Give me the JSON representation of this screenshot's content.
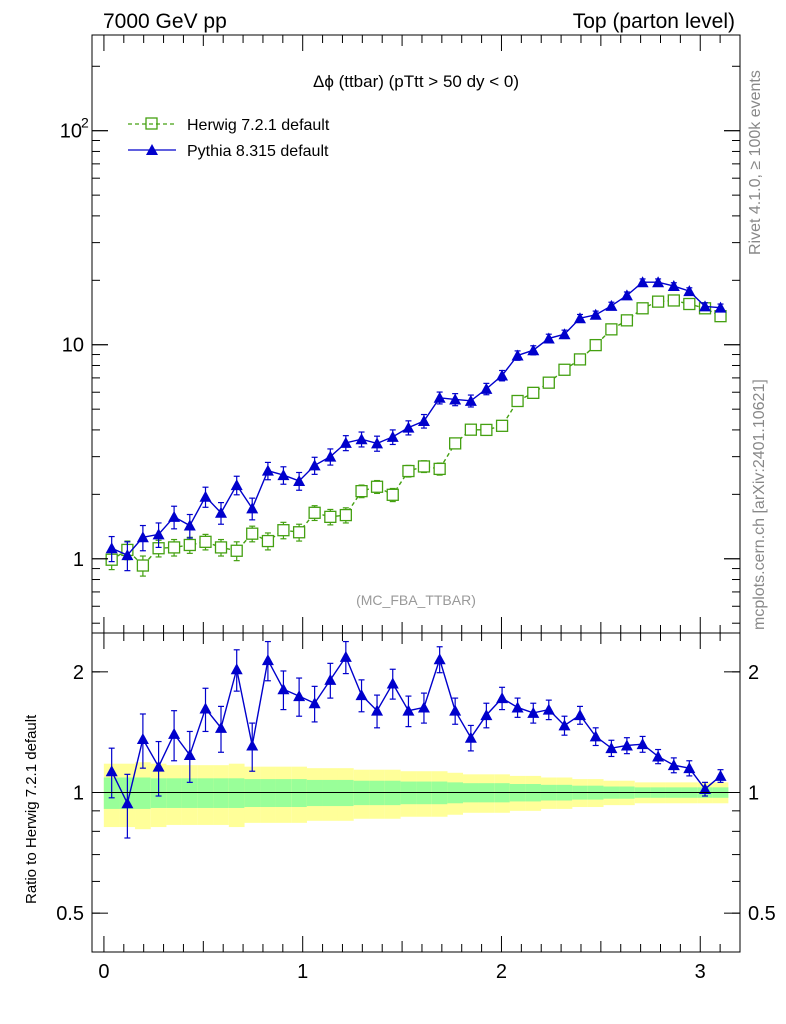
{
  "header": {
    "left": "7000 GeV pp",
    "right": "Top (parton level)"
  },
  "side_labels": {
    "rivet": "Rivet 4.1.0, ≥ 100k events",
    "mcplots": "mcplots.cern.ch [arXiv:2401.10621]"
  },
  "colors": {
    "herwig": "#44a011",
    "pythia": "#0000cc",
    "band_outer": "#ffff99",
    "band_inner": "#99ff99"
  },
  "chart_data": [
    {
      "type": "line",
      "title": "Δϕ (ttbar) (pTtt > 50 dy < 0)",
      "analysis": "(MC_FBA_TTBAR)",
      "xlabel": "",
      "ylabel": "",
      "yscale": "log",
      "xlim": [
        -0.06,
        3.2
      ],
      "ylim": [
        0.45,
        280
      ],
      "xticks": [
        0,
        1,
        2,
        3
      ],
      "xtick_labels": [
        "0",
        "1",
        "2",
        "3"
      ],
      "yticks": [
        1,
        10,
        100
      ],
      "ytick_labels": [
        "1",
        "10",
        "10^2"
      ],
      "legend_position": "top-left",
      "x": [
        0.039,
        0.118,
        0.196,
        0.275,
        0.353,
        0.432,
        0.511,
        0.589,
        0.668,
        0.746,
        0.825,
        0.903,
        0.982,
        1.06,
        1.139,
        1.217,
        1.296,
        1.374,
        1.453,
        1.532,
        1.61,
        1.689,
        1.767,
        1.846,
        1.924,
        2.003,
        2.081,
        2.16,
        2.238,
        2.317,
        2.395,
        2.474,
        2.553,
        2.631,
        2.71,
        2.788,
        2.867,
        2.945,
        3.024,
        3.102
      ],
      "series": [
        {
          "name": "Herwig 7.2.1 default",
          "color_key": "herwig",
          "marker": "open-square",
          "line": "dashed",
          "values": [
            0.99,
            1.1,
            0.93,
            1.12,
            1.13,
            1.16,
            1.2,
            1.13,
            1.09,
            1.31,
            1.21,
            1.36,
            1.33,
            1.64,
            1.57,
            1.6,
            2.07,
            2.17,
            1.99,
            2.57,
            2.7,
            2.63,
            3.46,
            4.01,
            4.0,
            4.18,
            5.46,
            5.96,
            6.65,
            7.64,
            8.54,
            9.96,
            11.8,
            13.0,
            14.8,
            15.9,
            16.1,
            15.5,
            14.8,
            13.6
          ],
          "errors": [
            0.1,
            0.11,
            0.1,
            0.1,
            0.1,
            0.1,
            0.1,
            0.1,
            0.11,
            0.11,
            0.11,
            0.12,
            0.12,
            0.13,
            0.13,
            0.13,
            0.14,
            0.15,
            0.14,
            0.16,
            0.17,
            0.17,
            0.19,
            0.2,
            0.2,
            0.21,
            0.24,
            0.25,
            0.27,
            0.29,
            0.31,
            0.35,
            0.38,
            0.4,
            0.43,
            0.45,
            0.45,
            0.44,
            0.43,
            0.41
          ]
        },
        {
          "name": "Pythia 8.315 default",
          "color_key": "pythia",
          "marker": "filled-triangle",
          "line": "solid",
          "values": [
            1.12,
            1.04,
            1.26,
            1.3,
            1.57,
            1.43,
            1.95,
            1.64,
            2.21,
            1.72,
            2.58,
            2.46,
            2.31,
            2.73,
            3.0,
            3.48,
            3.62,
            3.46,
            3.71,
            4.1,
            4.4,
            5.65,
            5.55,
            5.47,
            6.22,
            7.18,
            8.91,
            9.43,
            10.7,
            11.2,
            13.3,
            13.8,
            15.2,
            17.0,
            19.6,
            19.6,
            18.8,
            17.8,
            15.1,
            14.9
          ],
          "errors": [
            0.15,
            0.16,
            0.17,
            0.17,
            0.19,
            0.18,
            0.21,
            0.19,
            0.22,
            0.2,
            0.24,
            0.23,
            0.22,
            0.25,
            0.26,
            0.28,
            0.29,
            0.28,
            0.29,
            0.31,
            0.32,
            0.36,
            0.36,
            0.35,
            0.38,
            0.4,
            0.45,
            0.46,
            0.5,
            0.5,
            0.55,
            0.56,
            0.6,
            0.64,
            0.7,
            0.7,
            0.68,
            0.65,
            0.6,
            0.59
          ]
        }
      ]
    },
    {
      "type": "line",
      "ylabel": "Ratio to Herwig 7.2.1 default",
      "xlabel": "",
      "yscale": "log",
      "xlim": [
        -0.06,
        3.2
      ],
      "ylim": [
        0.4,
        2.5
      ],
      "yticks": [
        0.5,
        1,
        2
      ],
      "ytick_labels": [
        "0.5",
        "1",
        "2"
      ],
      "xticks": [
        0,
        1,
        2,
        3
      ],
      "xtick_labels": [
        "0",
        "1",
        "2",
        "3"
      ],
      "reference_line": 1,
      "x": [
        0.039,
        0.118,
        0.196,
        0.275,
        0.353,
        0.432,
        0.511,
        0.589,
        0.668,
        0.746,
        0.825,
        0.903,
        0.982,
        1.06,
        1.139,
        1.217,
        1.296,
        1.374,
        1.453,
        1.532,
        1.61,
        1.689,
        1.767,
        1.846,
        1.924,
        2.003,
        2.081,
        2.16,
        2.238,
        2.317,
        2.395,
        2.474,
        2.553,
        2.631,
        2.71,
        2.788,
        2.867,
        2.945,
        3.024,
        3.102
      ],
      "band_inner_halfwidth": [
        0.09,
        0.09,
        0.09,
        0.085,
        0.085,
        0.085,
        0.085,
        0.085,
        0.085,
        0.08,
        0.08,
        0.08,
        0.08,
        0.075,
        0.075,
        0.075,
        0.07,
        0.07,
        0.07,
        0.065,
        0.065,
        0.065,
        0.06,
        0.055,
        0.055,
        0.055,
        0.05,
        0.05,
        0.045,
        0.045,
        0.04,
        0.04,
        0.035,
        0.035,
        0.03,
        0.03,
        0.03,
        0.03,
        0.03,
        0.03
      ],
      "band_outer_halfwidth": [
        0.18,
        0.18,
        0.19,
        0.18,
        0.17,
        0.17,
        0.17,
        0.17,
        0.18,
        0.16,
        0.16,
        0.16,
        0.16,
        0.15,
        0.15,
        0.15,
        0.14,
        0.14,
        0.14,
        0.13,
        0.13,
        0.13,
        0.12,
        0.11,
        0.11,
        0.11,
        0.1,
        0.1,
        0.09,
        0.09,
        0.08,
        0.08,
        0.07,
        0.07,
        0.06,
        0.06,
        0.06,
        0.06,
        0.06,
        0.06
      ],
      "series": [
        {
          "name": "Pythia 8.315 default / Herwig 7.2.1 default",
          "color_key": "pythia",
          "marker": "filled-triangle",
          "line": "solid",
          "values": [
            1.13,
            0.94,
            1.36,
            1.16,
            1.4,
            1.24,
            1.62,
            1.45,
            2.03,
            1.31,
            2.14,
            1.81,
            1.74,
            1.67,
            1.91,
            2.18,
            1.75,
            1.6,
            1.87,
            1.6,
            1.63,
            2.15,
            1.6,
            1.37,
            1.56,
            1.72,
            1.63,
            1.58,
            1.61,
            1.47,
            1.56,
            1.38,
            1.29,
            1.31,
            1.32,
            1.23,
            1.17,
            1.15,
            1.02,
            1.1
          ],
          "errors": [
            0.16,
            0.17,
            0.21,
            0.18,
            0.2,
            0.18,
            0.2,
            0.19,
            0.24,
            0.18,
            0.24,
            0.2,
            0.19,
            0.17,
            0.19,
            0.2,
            0.16,
            0.15,
            0.16,
            0.14,
            0.14,
            0.16,
            0.12,
            0.1,
            0.11,
            0.11,
            0.09,
            0.09,
            0.09,
            0.08,
            0.08,
            0.07,
            0.06,
            0.06,
            0.06,
            0.05,
            0.05,
            0.05,
            0.04,
            0.04
          ]
        }
      ]
    }
  ]
}
